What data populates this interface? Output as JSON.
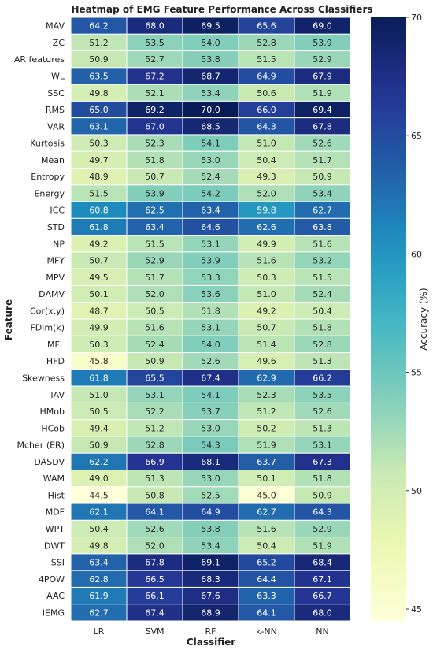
{
  "chart_data": {
    "type": "heatmap",
    "title": "Heatmap of EMG Feature Performance Across Classifiers",
    "xlabel": "Classifier",
    "ylabel": "Feature",
    "colorbar_label": "Accuracy (%)",
    "colorbar_ticks": [
      45,
      50,
      55,
      60,
      65,
      70
    ],
    "value_range": [
      44.5,
      70.0
    ],
    "colormap": "YlGnBu",
    "columns": [
      "LR",
      "SVM",
      "RF",
      "k-NN",
      "NN"
    ],
    "rows": [
      "MAV",
      "ZC",
      "AR features",
      "WL",
      "SSC",
      "RMS",
      "VAR",
      "Kurtosis",
      "Mean",
      "Entropy",
      "Energy",
      "ICC",
      "STD",
      "NP",
      "MFY",
      "MPV",
      "DAMV",
      "Cor(x,y)",
      "FDim(k)",
      "MFL",
      "HFD",
      "Skewness",
      "IAV",
      "HMob",
      "HCob",
      "Mcher (ER)",
      "DASDV",
      "WAM",
      "Hist",
      "MDF",
      "WPT",
      "DWT",
      "SSI",
      "4POW",
      "AAC",
      "IEMG"
    ],
    "values": [
      [
        64.2,
        68.0,
        69.5,
        65.6,
        69.0
      ],
      [
        51.2,
        53.5,
        54.0,
        52.8,
        53.9
      ],
      [
        50.9,
        52.7,
        53.8,
        51.5,
        52.9
      ],
      [
        63.5,
        67.2,
        68.7,
        64.9,
        67.9
      ],
      [
        49.8,
        52.1,
        53.4,
        50.6,
        51.9
      ],
      [
        65.0,
        69.2,
        70.0,
        66.0,
        69.4
      ],
      [
        63.1,
        67.0,
        68.5,
        64.3,
        67.8
      ],
      [
        50.3,
        52.3,
        54.1,
        51.0,
        52.6
      ],
      [
        49.7,
        51.8,
        53.0,
        50.4,
        51.7
      ],
      [
        48.9,
        50.7,
        52.4,
        49.3,
        50.9
      ],
      [
        51.5,
        53.9,
        54.2,
        52.0,
        53.4
      ],
      [
        60.8,
        62.5,
        63.4,
        59.8,
        62.7
      ],
      [
        61.8,
        63.4,
        64.6,
        62.6,
        63.8
      ],
      [
        49.2,
        51.5,
        53.1,
        49.9,
        51.6
      ],
      [
        50.7,
        52.9,
        53.9,
        51.6,
        53.2
      ],
      [
        49.5,
        51.7,
        53.3,
        50.3,
        51.5
      ],
      [
        50.1,
        52.0,
        53.6,
        51.0,
        52.4
      ],
      [
        48.7,
        50.5,
        51.8,
        49.2,
        50.4
      ],
      [
        49.9,
        51.6,
        53.1,
        50.7,
        51.8
      ],
      [
        50.3,
        52.4,
        54.0,
        51.4,
        52.8
      ],
      [
        45.8,
        50.9,
        52.6,
        49.6,
        51.3
      ],
      [
        61.8,
        65.5,
        67.4,
        62.9,
        66.2
      ],
      [
        51.0,
        53.1,
        54.1,
        52.3,
        53.5
      ],
      [
        50.5,
        52.2,
        53.7,
        51.2,
        52.6
      ],
      [
        49.4,
        51.2,
        53.0,
        50.2,
        51.3
      ],
      [
        50.9,
        52.8,
        54.3,
        51.9,
        53.1
      ],
      [
        62.2,
        66.9,
        68.1,
        63.7,
        67.3
      ],
      [
        49.0,
        51.3,
        53.0,
        50.1,
        51.8
      ],
      [
        44.5,
        50.8,
        52.5,
        45.0,
        50.9
      ],
      [
        62.1,
        64.1,
        64.9,
        62.7,
        64.3
      ],
      [
        50.4,
        52.6,
        53.8,
        51.6,
        52.9
      ],
      [
        49.8,
        52.0,
        53.4,
        50.4,
        51.9
      ],
      [
        63.4,
        67.8,
        69.1,
        65.2,
        68.4
      ],
      [
        62.8,
        66.5,
        68.3,
        64.4,
        67.1
      ],
      [
        61.9,
        66.1,
        67.6,
        63.3,
        66.7
      ],
      [
        62.7,
        67.4,
        68.9,
        64.1,
        68.0
      ]
    ]
  }
}
